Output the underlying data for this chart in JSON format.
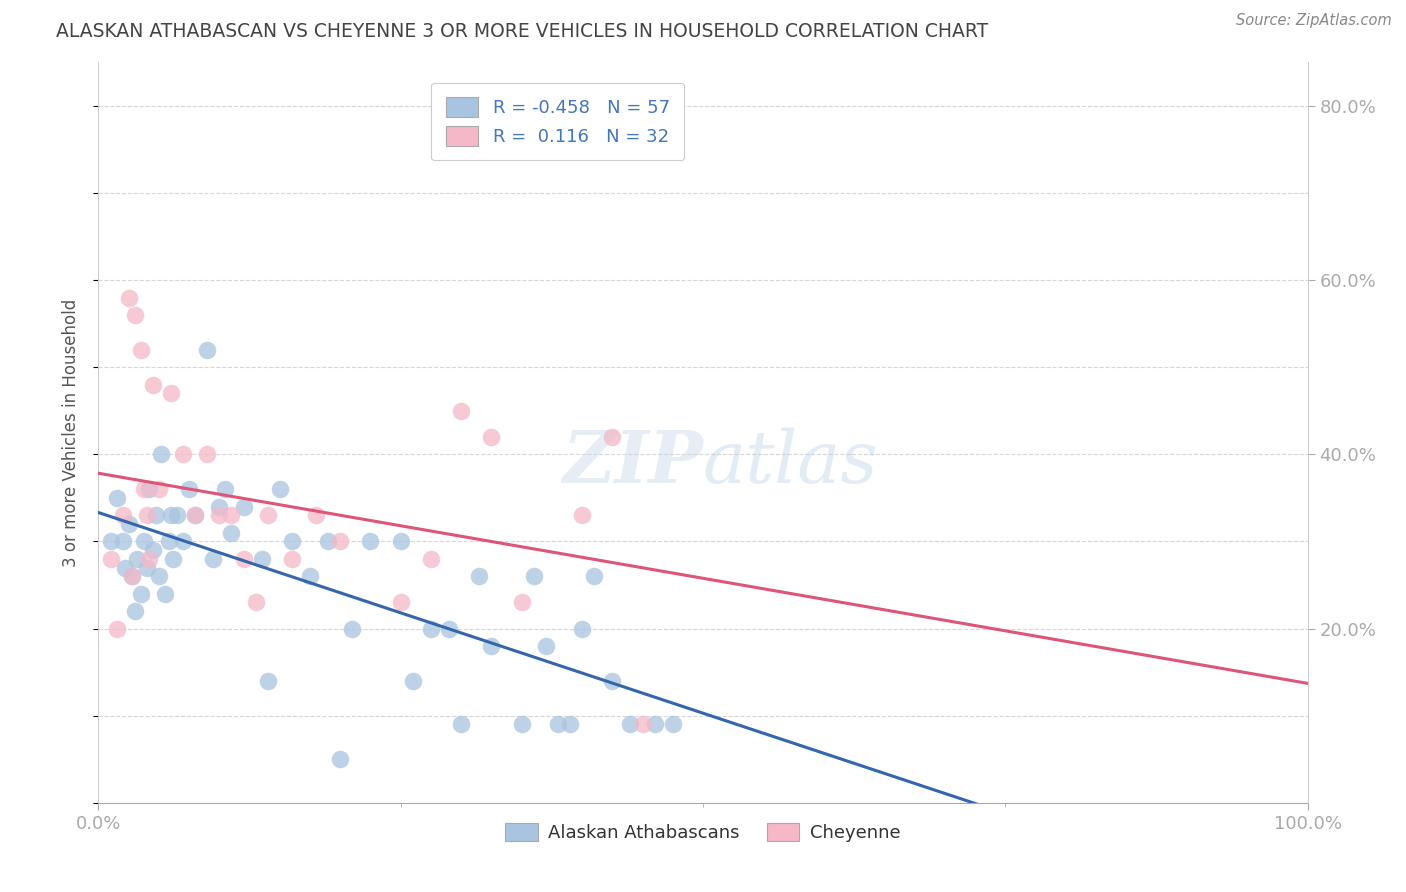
{
  "title": "ALASKAN ATHABASCAN VS CHEYENNE 3 OR MORE VEHICLES IN HOUSEHOLD CORRELATION CHART",
  "source": "Source: ZipAtlas.com",
  "ylabel": "3 or more Vehicles in Household",
  "xlim": [
    0.0,
    100.0
  ],
  "ylim": [
    0.0,
    85.0
  ],
  "blue_R": "-0.458",
  "blue_N": "57",
  "pink_R": "0.116",
  "pink_N": "32",
  "blue_color": "#a8c4e0",
  "pink_color": "#f4b8c8",
  "blue_line_color": "#3366aa",
  "pink_line_color": "#dd5577",
  "legend_label_blue": "Alaskan Athabascans",
  "legend_label_pink": "Cheyenne",
  "background_color": "#ffffff",
  "grid_color": "#cccccc",
  "title_color": "#444444",
  "watermark": "ZIPatlas",
  "blue_x": [
    1.0,
    1.5,
    2.0,
    2.2,
    2.5,
    2.8,
    3.0,
    3.2,
    3.5,
    3.8,
    4.0,
    4.2,
    4.5,
    4.8,
    5.0,
    5.2,
    5.5,
    5.8,
    6.0,
    6.2,
    6.5,
    7.0,
    7.5,
    8.0,
    9.0,
    9.5,
    10.0,
    10.5,
    11.0,
    12.0,
    13.5,
    14.0,
    15.0,
    16.0,
    17.5,
    19.0,
    20.0,
    21.0,
    22.5,
    25.0,
    26.0,
    27.5,
    29.0,
    30.0,
    31.5,
    32.5,
    35.0,
    36.0,
    37.0,
    38.0,
    39.0,
    40.0,
    41.0,
    42.5,
    44.0,
    46.0,
    47.5
  ],
  "blue_y": [
    30.0,
    35.0,
    30.0,
    27.0,
    32.0,
    26.0,
    22.0,
    28.0,
    24.0,
    30.0,
    27.0,
    36.0,
    29.0,
    33.0,
    26.0,
    40.0,
    24.0,
    30.0,
    33.0,
    28.0,
    33.0,
    30.0,
    36.0,
    33.0,
    52.0,
    28.0,
    34.0,
    36.0,
    31.0,
    34.0,
    28.0,
    14.0,
    36.0,
    30.0,
    26.0,
    30.0,
    5.0,
    20.0,
    30.0,
    30.0,
    14.0,
    20.0,
    20.0,
    9.0,
    26.0,
    18.0,
    9.0,
    26.0,
    18.0,
    9.0,
    9.0,
    20.0,
    26.0,
    14.0,
    9.0,
    9.0,
    9.0
  ],
  "pink_x": [
    1.0,
    1.5,
    2.0,
    2.5,
    2.8,
    3.0,
    3.5,
    3.8,
    4.0,
    4.2,
    4.5,
    5.0,
    6.0,
    7.0,
    8.0,
    9.0,
    10.0,
    11.0,
    12.0,
    13.0,
    14.0,
    16.0,
    18.0,
    20.0,
    25.0,
    27.5,
    30.0,
    32.5,
    35.0,
    40.0,
    42.5,
    45.0
  ],
  "pink_y": [
    28.0,
    20.0,
    33.0,
    58.0,
    26.0,
    56.0,
    52.0,
    36.0,
    33.0,
    28.0,
    48.0,
    36.0,
    47.0,
    40.0,
    33.0,
    40.0,
    33.0,
    33.0,
    28.0,
    23.0,
    33.0,
    28.0,
    33.0,
    30.0,
    23.0,
    28.0,
    45.0,
    42.0,
    23.0,
    33.0,
    42.0,
    9.0
  ]
}
